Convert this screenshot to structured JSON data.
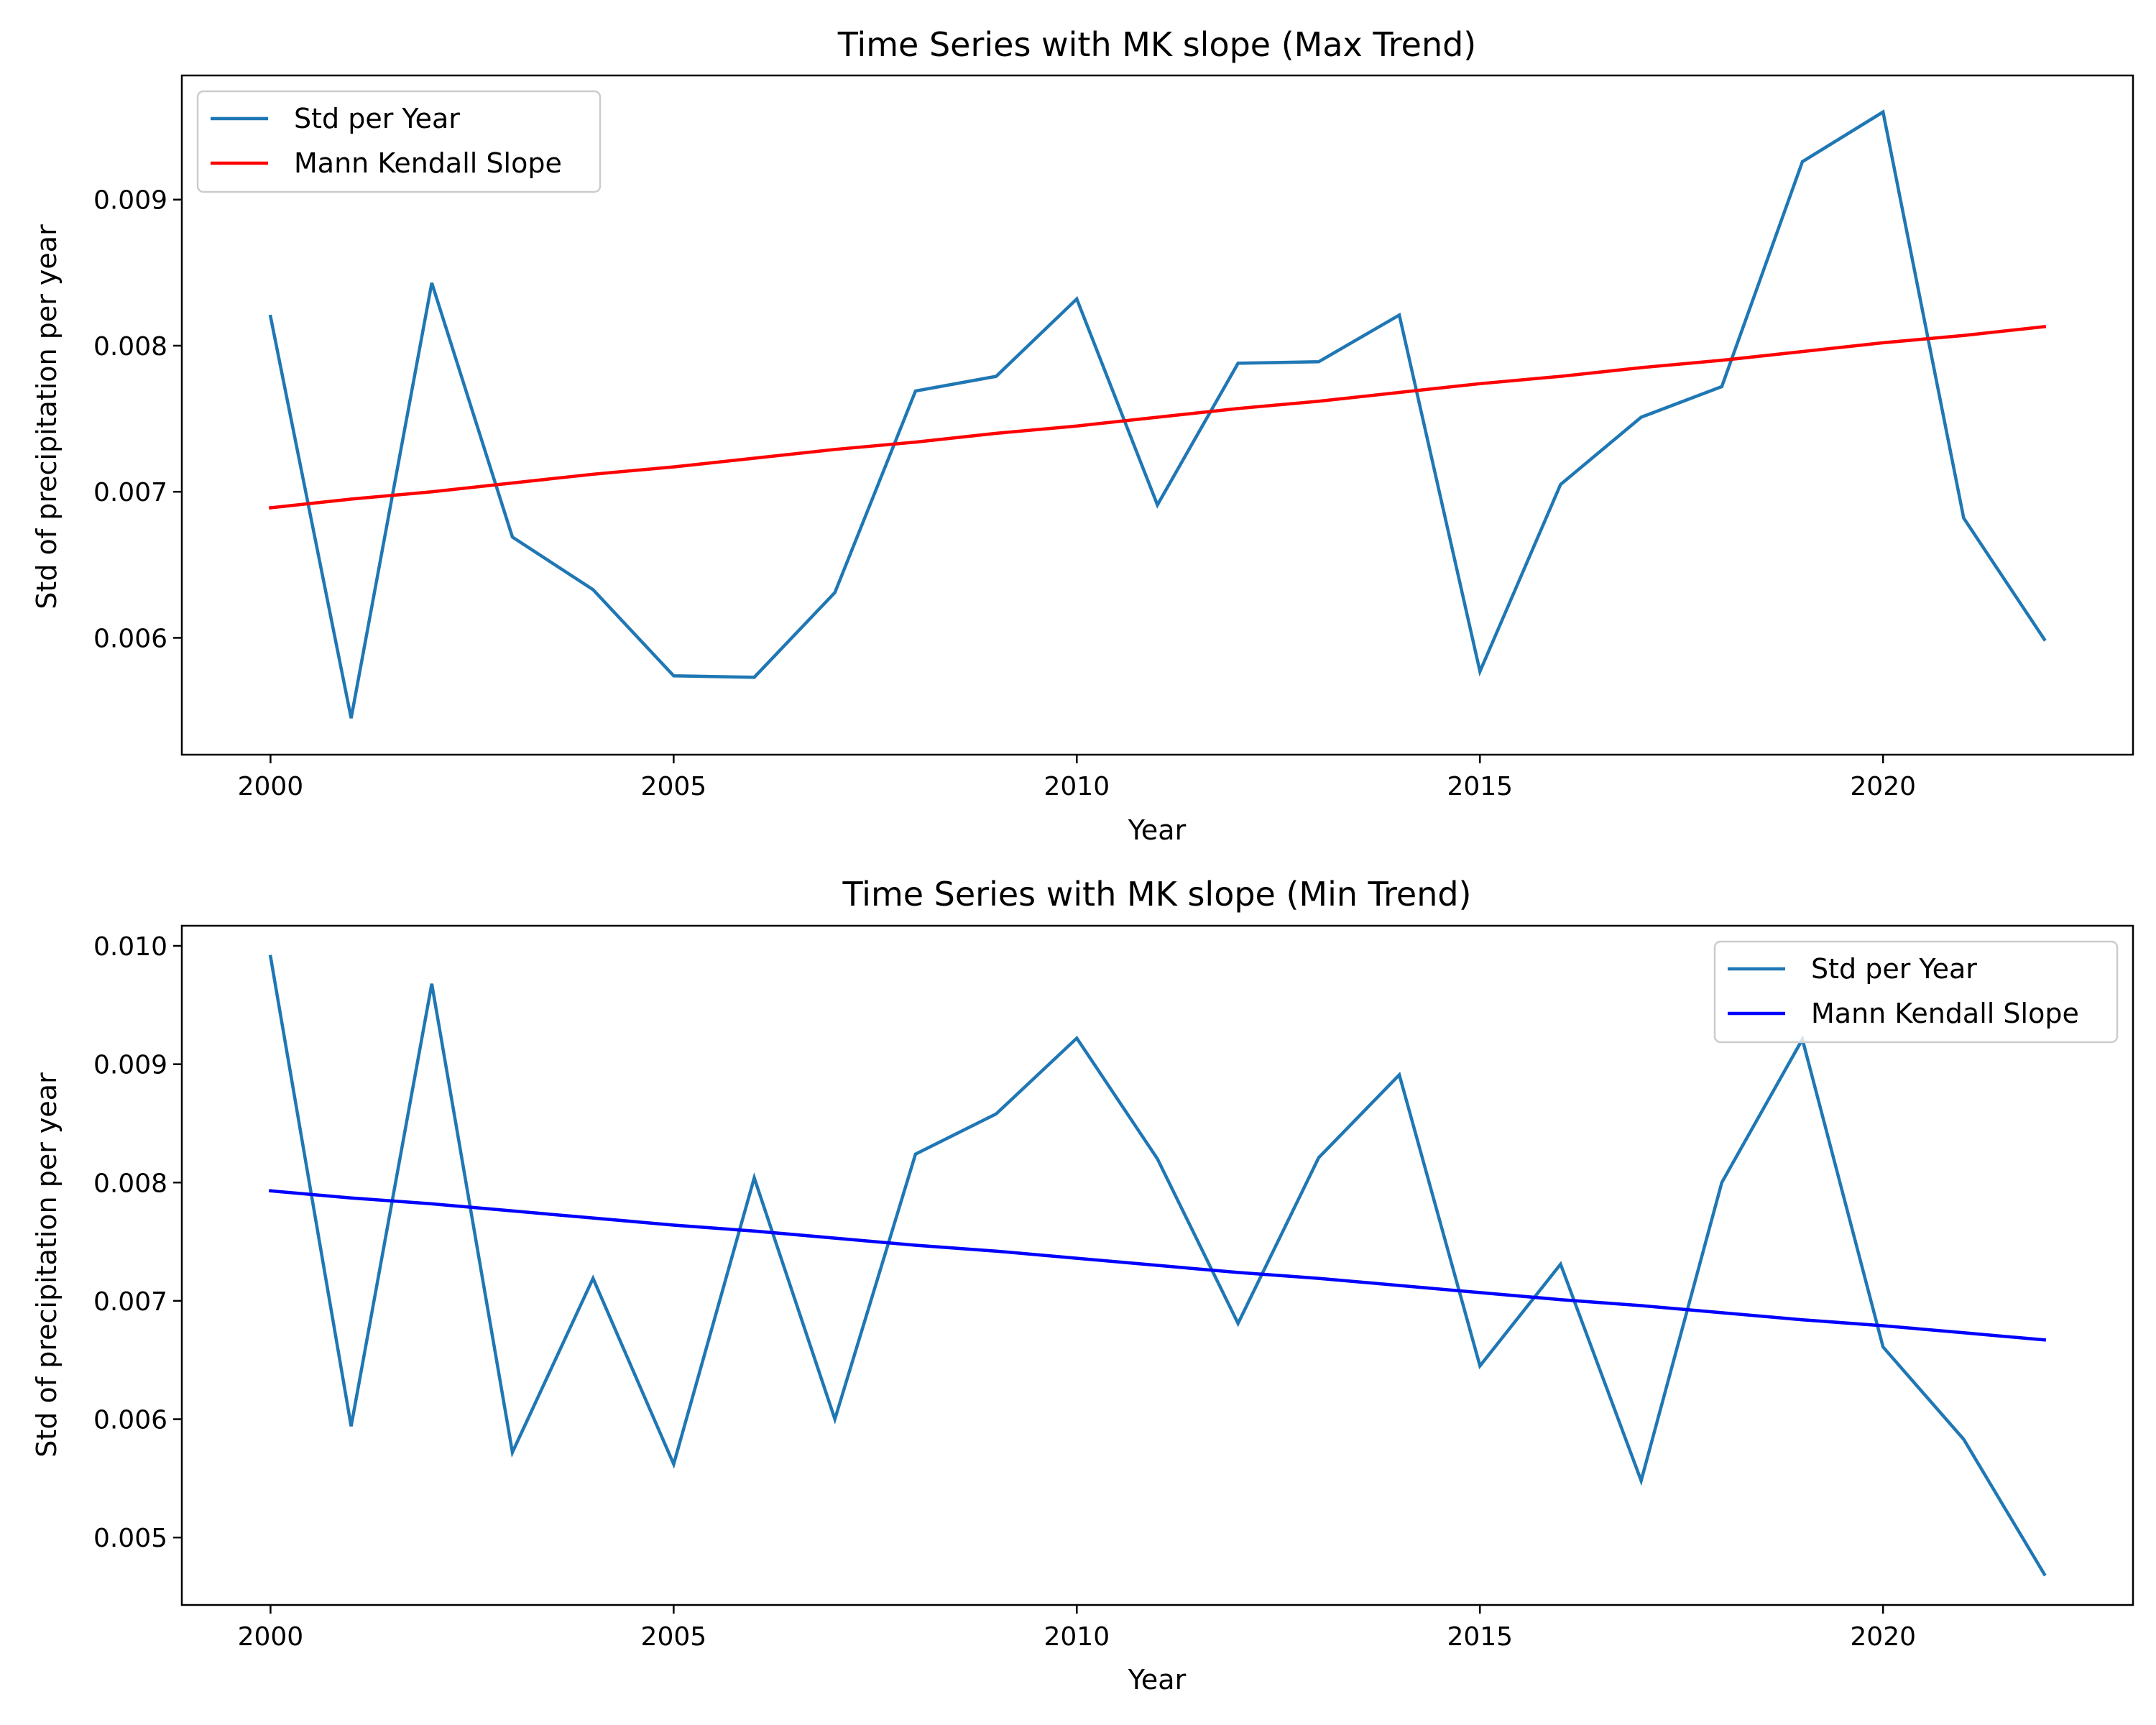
{
  "chart_data": [
    {
      "type": "line",
      "title": "Time Series with MK slope (Max Trend)",
      "xlabel": "Year",
      "ylabel": "Std of precipitation per year",
      "xlim": [
        1998.9,
        2023.1
      ],
      "ylim": [
        0.0052,
        0.00985
      ],
      "xticks": [
        2000,
        2005,
        2010,
        2015,
        2020
      ],
      "xtick_labels": [
        "2000",
        "2005",
        "2010",
        "2015",
        "2020"
      ],
      "yticks": [
        0.006,
        0.007,
        0.008,
        0.009
      ],
      "ytick_labels": [
        "0.006",
        "0.007",
        "0.008",
        "0.009"
      ],
      "legend_position": "upper-left",
      "x": [
        2000,
        2001,
        2002,
        2003,
        2004,
        2005,
        2006,
        2007,
        2008,
        2009,
        2010,
        2011,
        2012,
        2013,
        2014,
        2015,
        2016,
        2017,
        2018,
        2019,
        2020,
        2021,
        2022
      ],
      "series": [
        {
          "name": "Std per Year",
          "color": "#1f77b4",
          "values": [
            0.0082,
            0.00545,
            0.00843,
            0.00669,
            0.00633,
            0.00574,
            0.00573,
            0.00631,
            0.00769,
            0.00779,
            0.00832,
            0.00691,
            0.00788,
            0.00789,
            0.00821,
            0.00577,
            0.00705,
            0.00751,
            0.00772,
            0.00926,
            0.0096,
            0.00682,
            0.00599
          ]
        },
        {
          "name": "Mann Kendall Slope",
          "color": "#ff0000",
          "values": [
            0.00689,
            0.00695,
            0.007,
            0.00706,
            0.00712,
            0.00717,
            0.00723,
            0.00729,
            0.00734,
            0.0074,
            0.00745,
            0.00751,
            0.00757,
            0.00762,
            0.00768,
            0.00774,
            0.00779,
            0.00785,
            0.0079,
            0.00796,
            0.00802,
            0.00807,
            0.00813
          ]
        }
      ]
    },
    {
      "type": "line",
      "title": "Time Series with MK slope (Min Trend)",
      "xlabel": "Year",
      "ylabel": "Std of precipitation per year",
      "xlim": [
        1998.9,
        2023.1
      ],
      "ylim": [
        0.00443,
        0.01017
      ],
      "xticks": [
        2000,
        2005,
        2010,
        2015,
        2020
      ],
      "xtick_labels": [
        "2000",
        "2005",
        "2010",
        "2015",
        "2020"
      ],
      "yticks": [
        0.005,
        0.006,
        0.007,
        0.008,
        0.009,
        0.01
      ],
      "ytick_labels": [
        "0.005",
        "0.006",
        "0.007",
        "0.008",
        "0.009",
        "0.010"
      ],
      "legend_position": "upper-right",
      "x": [
        2000,
        2001,
        2002,
        2003,
        2004,
        2005,
        2006,
        2007,
        2008,
        2009,
        2010,
        2011,
        2012,
        2013,
        2014,
        2015,
        2016,
        2017,
        2018,
        2019,
        2020,
        2021,
        2022
      ],
      "series": [
        {
          "name": "Std per Year",
          "color": "#1f77b4",
          "values": [
            0.00991,
            0.00594,
            0.00968,
            0.00572,
            0.00719,
            0.00562,
            0.00804,
            0.006,
            0.00824,
            0.00858,
            0.00922,
            0.0082,
            0.00681,
            0.00821,
            0.00891,
            0.00645,
            0.00731,
            0.00548,
            0.008,
            0.00921,
            0.00661,
            0.00583,
            0.00469
          ]
        },
        {
          "name": "Mann Kendall Slope",
          "color": "#0000ff",
          "values": [
            0.00793,
            0.00787,
            0.00782,
            0.00776,
            0.0077,
            0.00764,
            0.00759,
            0.00753,
            0.00747,
            0.00742,
            0.00736,
            0.0073,
            0.00724,
            0.00719,
            0.00713,
            0.00707,
            0.00701,
            0.00696,
            0.0069,
            0.00684,
            0.00679,
            0.00673,
            0.00667
          ]
        }
      ]
    }
  ]
}
